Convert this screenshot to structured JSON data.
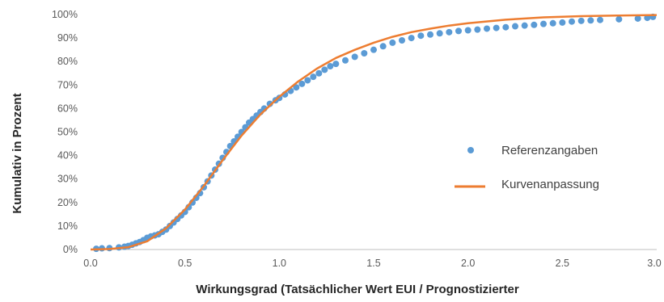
{
  "chart_data": {
    "type": "scatter",
    "title": "",
    "xlabel": "Wirkungsgrad (Tatsächlicher Wert EUI  / Prognostizierter",
    "ylabel": "Kumulativ in Prozent",
    "xlim": [
      0,
      3.0
    ],
    "ylim": [
      0,
      100
    ],
    "x_ticks": [
      "0.0",
      "0.5",
      "1.0",
      "1.5",
      "2.0",
      "2.5",
      "3.0"
    ],
    "y_ticks": [
      "0%",
      "10%",
      "20%",
      "30%",
      "40%",
      "50%",
      "60%",
      "70%",
      "80%",
      "90%",
      "100%"
    ],
    "grid": false,
    "legend": "center-right",
    "series": [
      {
        "name": "Referenzangaben",
        "kind": "scatter",
        "color": "#5B9BD5",
        "points": [
          [
            0.03,
            0.3
          ],
          [
            0.06,
            0.5
          ],
          [
            0.1,
            0.6
          ],
          [
            0.15,
            0.9
          ],
          [
            0.18,
            1.2
          ],
          [
            0.2,
            1.5
          ],
          [
            0.22,
            2.0
          ],
          [
            0.24,
            2.6
          ],
          [
            0.26,
            3.2
          ],
          [
            0.28,
            4.0
          ],
          [
            0.3,
            5.0
          ],
          [
            0.32,
            5.6
          ],
          [
            0.34,
            6.0
          ],
          [
            0.36,
            6.5
          ],
          [
            0.38,
            7.5
          ],
          [
            0.4,
            8.5
          ],
          [
            0.42,
            10.0
          ],
          [
            0.44,
            11.5
          ],
          [
            0.46,
            13.0
          ],
          [
            0.48,
            14.5
          ],
          [
            0.5,
            16.0
          ],
          [
            0.52,
            18.0
          ],
          [
            0.54,
            20.0
          ],
          [
            0.56,
            22.0
          ],
          [
            0.58,
            24.0
          ],
          [
            0.6,
            26.5
          ],
          [
            0.62,
            29.0
          ],
          [
            0.64,
            31.5
          ],
          [
            0.66,
            34.0
          ],
          [
            0.68,
            36.5
          ],
          [
            0.7,
            39.0
          ],
          [
            0.72,
            41.5
          ],
          [
            0.74,
            44.0
          ],
          [
            0.76,
            46.0
          ],
          [
            0.78,
            48.0
          ],
          [
            0.8,
            50.0
          ],
          [
            0.82,
            52.0
          ],
          [
            0.84,
            54.0
          ],
          [
            0.86,
            55.5
          ],
          [
            0.88,
            57.0
          ],
          [
            0.9,
            58.5
          ],
          [
            0.92,
            60.0
          ],
          [
            0.95,
            62.0
          ],
          [
            0.98,
            63.5
          ],
          [
            1.0,
            64.5
          ],
          [
            1.03,
            66.0
          ],
          [
            1.06,
            67.5
          ],
          [
            1.09,
            69.0
          ],
          [
            1.12,
            70.5
          ],
          [
            1.15,
            72.0
          ],
          [
            1.18,
            73.5
          ],
          [
            1.21,
            75.0
          ],
          [
            1.24,
            76.5
          ],
          [
            1.27,
            78.0
          ],
          [
            1.3,
            79.0
          ],
          [
            1.35,
            80.5
          ],
          [
            1.4,
            82.0
          ],
          [
            1.45,
            83.5
          ],
          [
            1.5,
            85.0
          ],
          [
            1.55,
            86.5
          ],
          [
            1.6,
            88.0
          ],
          [
            1.65,
            89.0
          ],
          [
            1.7,
            90.0
          ],
          [
            1.75,
            91.0
          ],
          [
            1.8,
            91.5
          ],
          [
            1.85,
            92.0
          ],
          [
            1.9,
            92.5
          ],
          [
            1.95,
            93.0
          ],
          [
            2.0,
            93.3
          ],
          [
            2.05,
            93.6
          ],
          [
            2.1,
            94.0
          ],
          [
            2.15,
            94.3
          ],
          [
            2.2,
            94.6
          ],
          [
            2.25,
            95.0
          ],
          [
            2.3,
            95.3
          ],
          [
            2.35,
            95.6
          ],
          [
            2.4,
            96.0
          ],
          [
            2.45,
            96.3
          ],
          [
            2.5,
            96.6
          ],
          [
            2.55,
            97.0
          ],
          [
            2.6,
            97.3
          ],
          [
            2.65,
            97.5
          ],
          [
            2.7,
            97.7
          ],
          [
            2.8,
            98.0
          ],
          [
            2.9,
            98.3
          ],
          [
            2.95,
            98.6
          ],
          [
            2.98,
            99.0
          ]
        ]
      },
      {
        "name": "Kurvenanpassung",
        "kind": "line",
        "color": "#ED7D31",
        "points": [
          [
            0.0,
            0.0
          ],
          [
            0.1,
            0.2
          ],
          [
            0.2,
            1.0
          ],
          [
            0.3,
            3.5
          ],
          [
            0.4,
            9.0
          ],
          [
            0.5,
            17.0
          ],
          [
            0.6,
            27.0
          ],
          [
            0.7,
            38.0
          ],
          [
            0.8,
            48.5
          ],
          [
            0.9,
            57.5
          ],
          [
            1.0,
            65.0
          ],
          [
            1.1,
            71.5
          ],
          [
            1.2,
            77.0
          ],
          [
            1.3,
            81.5
          ],
          [
            1.4,
            85.0
          ],
          [
            1.5,
            88.0
          ],
          [
            1.6,
            90.5
          ],
          [
            1.7,
            92.5
          ],
          [
            1.8,
            94.0
          ],
          [
            1.9,
            95.3
          ],
          [
            2.0,
            96.3
          ],
          [
            2.2,
            97.8
          ],
          [
            2.4,
            98.8
          ],
          [
            2.6,
            99.3
          ],
          [
            2.8,
            99.6
          ],
          [
            3.0,
            99.8
          ]
        ]
      }
    ]
  }
}
